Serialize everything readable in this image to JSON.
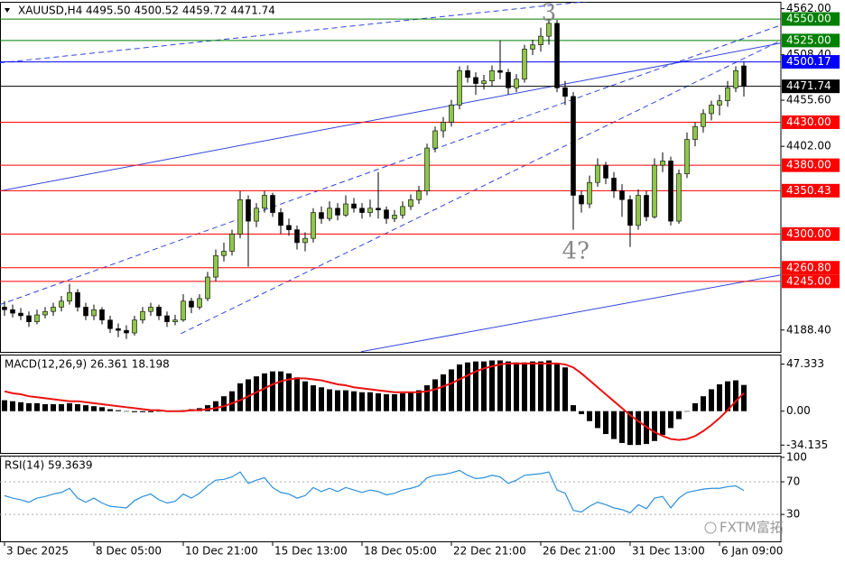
{
  "chart_data": [
    {
      "type": "candlestick",
      "title": "XAUUSD,H4",
      "ohlc_label": "4495.50 4500.52 4459.72 4471.74",
      "up_color": "#8fc64a",
      "down_color": "#000000",
      "ylim": [
        4163,
        4570
      ],
      "yticks": [
        {
          "value": 4562,
          "label": "4562.00"
        },
        {
          "value": 4508.4,
          "label": "4508.40"
        },
        {
          "value": 4455.6,
          "label": "4455.60"
        },
        {
          "value": 4402,
          "label": "4402.00"
        },
        {
          "value": 4188.4,
          "label": "4188.40"
        }
      ],
      "xticks": [
        {
          "value": 0,
          "label": "3 Dec 2025"
        },
        {
          "value": 11,
          "label": "8 Dec 05:00"
        },
        {
          "value": 22,
          "label": "10 Dec 21:00"
        },
        {
          "value": 33,
          "label": "15 Dec 13:00"
        },
        {
          "value": 44,
          "label": "18 Dec 05:00"
        },
        {
          "value": 55,
          "label": "22 Dec 21:00"
        },
        {
          "value": 66,
          "label": "26 Dec 21:00"
        },
        {
          "value": 77,
          "label": "31 Dec 13:00"
        },
        {
          "value": 88,
          "label": "6 Jan 09:00"
        }
      ],
      "levels": [
        {
          "value": 4550,
          "label": "4550.00",
          "color": "#008000"
        },
        {
          "value": 4525,
          "label": "4525.00",
          "color": "#008000"
        },
        {
          "value": 4500.17,
          "label": "4500.17",
          "color": "#0000ff"
        },
        {
          "value": 4471.74,
          "label": "4471.74",
          "color": "#000000"
        },
        {
          "value": 4430,
          "label": "4430.00",
          "color": "#ff0000"
        },
        {
          "value": 4380,
          "label": "4380.00",
          "color": "#ff0000"
        },
        {
          "value": 4350.43,
          "label": "4350.43",
          "color": "#ff0000"
        },
        {
          "value": 4300,
          "label": "4300.00",
          "color": "#ff0000"
        },
        {
          "value": 4260.8,
          "label": "4260.80",
          "color": "#ff0000"
        },
        {
          "value": 4245,
          "label": "4245.00",
          "color": "#ff0000"
        }
      ],
      "trendlines": [
        {
          "from": [
            -0.6,
            4499.0
          ],
          "to": [
            71.7,
            4570.4
          ],
          "dashed": true,
          "color": "#3344dd"
        },
        {
          "from": [
            -0.6,
            4217.8
          ],
          "to": [
            95.6,
            4543.1
          ],
          "dashed": true,
          "color": "#3344dd"
        },
        {
          "from": [
            21.7,
            4184.2
          ],
          "to": [
            95.6,
            4525.3
          ],
          "dashed": true,
          "color": "#3344dd"
        },
        {
          "from": [
            -0.6,
            4350.0
          ],
          "to": [
            95.6,
            4522.1
          ],
          "dashed": false,
          "color": "#3344dd"
        },
        {
          "from": [
            43.9,
            4163.3
          ],
          "to": [
            95.6,
            4252.5
          ],
          "dashed": false,
          "color": "#3344dd"
        }
      ],
      "annotations": [
        {
          "text": "3",
          "index": 67,
          "price": 4556
        },
        {
          "text": "4?",
          "index": 70.3,
          "price": 4279
        }
      ],
      "candles": [
        [
          4215,
          4222,
          4205,
          4212
        ],
        [
          4212,
          4218,
          4203,
          4208
        ],
        [
          4208,
          4214,
          4200,
          4205
        ],
        [
          4205,
          4210,
          4192,
          4198
        ],
        [
          4198,
          4212,
          4195,
          4206
        ],
        [
          4206,
          4215,
          4202,
          4210
        ],
        [
          4210,
          4220,
          4205,
          4215
        ],
        [
          4215,
          4228,
          4210,
          4222
        ],
        [
          4222,
          4242,
          4218,
          4232
        ],
        [
          4232,
          4236,
          4210,
          4215
        ],
        [
          4215,
          4220,
          4200,
          4205
        ],
        [
          4205,
          4218,
          4200,
          4212
        ],
        [
          4212,
          4215,
          4195,
          4200
        ],
        [
          4200,
          4205,
          4185,
          4190
        ],
        [
          4190,
          4196,
          4180,
          4188
        ],
        [
          4188,
          4194,
          4178,
          4185
        ],
        [
          4185,
          4205,
          4182,
          4200
        ],
        [
          4200,
          4215,
          4196,
          4210
        ],
        [
          4210,
          4220,
          4205,
          4215
        ],
        [
          4215,
          4218,
          4200,
          4205
        ],
        [
          4205,
          4210,
          4192,
          4198
        ],
        [
          4198,
          4206,
          4194,
          4200
        ],
        [
          4200,
          4230,
          4198,
          4222
        ],
        [
          4222,
          4226,
          4208,
          4215
        ],
        [
          4215,
          4230,
          4212,
          4225
        ],
        [
          4225,
          4256,
          4222,
          4250
        ],
        [
          4250,
          4282,
          4245,
          4275
        ],
        [
          4275,
          4290,
          4268,
          4280
        ],
        [
          4280,
          4305,
          4275,
          4300
        ],
        [
          4300,
          4350,
          4295,
          4340
        ],
        [
          4340,
          4345,
          4262,
          4315
        ],
        [
          4315,
          4336,
          4308,
          4330
        ],
        [
          4330,
          4350,
          4325,
          4345
        ],
        [
          4345,
          4348,
          4320,
          4325
        ],
        [
          4325,
          4330,
          4300,
          4310
        ],
        [
          4310,
          4318,
          4298,
          4305
        ],
        [
          4305,
          4310,
          4282,
          4290
        ],
        [
          4290,
          4302,
          4280,
          4295
        ],
        [
          4295,
          4330,
          4290,
          4325
        ],
        [
          4325,
          4332,
          4312,
          4318
        ],
        [
          4318,
          4338,
          4315,
          4330
        ],
        [
          4330,
          4336,
          4316,
          4322
        ],
        [
          4322,
          4345,
          4320,
          4335
        ],
        [
          4335,
          4342,
          4325,
          4330
        ],
        [
          4330,
          4336,
          4318,
          4325
        ],
        [
          4325,
          4340,
          4320,
          4330
        ],
        [
          4330,
          4372,
          4318,
          4328
        ],
        [
          4328,
          4332,
          4312,
          4318
        ],
        [
          4318,
          4328,
          4314,
          4322
        ],
        [
          4322,
          4338,
          4318,
          4332
        ],
        [
          4332,
          4346,
          4328,
          4340
        ],
        [
          4340,
          4356,
          4335,
          4350
        ],
        [
          4350,
          4405,
          4345,
          4400
        ],
        [
          4400,
          4425,
          4395,
          4420
        ],
        [
          4420,
          4436,
          4412,
          4430
        ],
        [
          4430,
          4456,
          4425,
          4450
        ],
        [
          4450,
          4495,
          4445,
          4490
        ],
        [
          4490,
          4496,
          4476,
          4482
        ],
        [
          4482,
          4488,
          4462,
          4475
        ],
        [
          4475,
          4485,
          4468,
          4478
        ],
        [
          4478,
          4496,
          4472,
          4490
        ],
        [
          4490,
          4525,
          4480,
          4488
        ],
        [
          4488,
          4492,
          4462,
          4470
        ],
        [
          4470,
          4486,
          4465,
          4480
        ],
        [
          4480,
          4520,
          4476,
          4515
        ],
        [
          4515,
          4526,
          4508,
          4520
        ],
        [
          4520,
          4540,
          4512,
          4530
        ],
        [
          4530,
          4550,
          4520,
          4545
        ],
        [
          4545,
          4549,
          4465,
          4470
        ],
        [
          4470,
          4478,
          4450,
          4460
        ],
        [
          4460,
          4465,
          4305,
          4345
        ],
        [
          4345,
          4350,
          4325,
          4335
        ],
        [
          4335,
          4368,
          4330,
          4360
        ],
        [
          4360,
          4388,
          4355,
          4380
        ],
        [
          4380,
          4384,
          4358,
          4365
        ],
        [
          4365,
          4372,
          4342,
          4350
        ],
        [
          4350,
          4358,
          4320,
          4340
        ],
        [
          4340,
          4345,
          4285,
          4310
        ],
        [
          4310,
          4352,
          4305,
          4345
        ],
        [
          4345,
          4350,
          4315,
          4320
        ],
        [
          4320,
          4388,
          4318,
          4380
        ],
        [
          4380,
          4395,
          4372,
          4385
        ],
        [
          4385,
          4390,
          4310,
          4315
        ],
        [
          4315,
          4375,
          4312,
          4370
        ],
        [
          4370,
          4418,
          4365,
          4410
        ],
        [
          4410,
          4430,
          4402,
          4425
        ],
        [
          4425,
          4445,
          4418,
          4440
        ],
        [
          4440,
          4455,
          4432,
          4450
        ],
        [
          4450,
          4462,
          4438,
          4455
        ],
        [
          4455,
          4478,
          4448,
          4470
        ],
        [
          4470,
          4495,
          4465,
          4490
        ],
        [
          4495.5,
          4500.52,
          4459.72,
          4471.74
        ]
      ]
    },
    {
      "type": "macd",
      "label": "MACD(12,26,9) 26.361 18.198",
      "bar_color": "#000000",
      "signal_color": "#ee1111",
      "ylim": [
        -42,
        56
      ],
      "yticks": [
        47.333,
        {
          "value": 0,
          "label": "0.00"
        },
        -34.135
      ],
      "histogram": [
        11,
        10,
        9,
        8,
        8,
        7,
        7,
        7,
        8,
        7,
        6,
        5,
        4,
        2,
        1,
        0,
        -1,
        -1,
        -1,
        0,
        0,
        0,
        1,
        2,
        3,
        6,
        10,
        15,
        20,
        28,
        32,
        35,
        38,
        40,
        40,
        38,
        34,
        30,
        26,
        24,
        22,
        21,
        21,
        20,
        19,
        19,
        18,
        17,
        17,
        18,
        19,
        21,
        26,
        32,
        37,
        42,
        47,
        49,
        50,
        50,
        51,
        51,
        50,
        49,
        49,
        50,
        50,
        51,
        48,
        44,
        6,
        -3,
        -10,
        -17,
        -23,
        -28,
        -32,
        -34,
        -34,
        -33,
        -30,
        -24,
        -17,
        -8,
        0,
        8,
        15,
        22,
        27,
        30,
        31,
        26.361
      ],
      "signal": [
        20,
        18,
        17,
        15,
        14,
        13,
        12,
        11,
        10,
        10,
        9,
        8,
        7,
        6,
        5,
        4,
        3,
        2,
        1,
        1,
        0,
        0,
        0,
        1,
        1,
        2,
        3,
        5,
        8,
        11,
        15,
        19,
        23,
        27,
        30,
        32,
        33,
        33,
        32,
        31,
        29,
        27,
        26,
        24,
        23,
        22,
        21,
        20,
        19,
        19,
        19,
        19,
        20,
        22,
        25,
        28,
        32,
        36,
        40,
        43,
        45,
        47,
        48,
        48,
        48,
        48,
        48,
        48,
        48,
        47,
        44,
        38,
        31,
        24,
        17,
        10,
        3,
        -4,
        -10,
        -16,
        -21,
        -25,
        -28,
        -29,
        -28,
        -25,
        -20,
        -14,
        -7,
        1,
        10,
        18.198
      ]
    },
    {
      "type": "line",
      "label": "RSI(14) 59.3639",
      "color": "#2b8fdc",
      "ylim": [
        -3,
        101
      ],
      "yticks": [
        100,
        70,
        30
      ],
      "values": [
        53,
        50,
        48,
        45,
        50,
        52,
        55,
        57,
        62,
        50,
        45,
        50,
        44,
        40,
        39,
        38,
        47,
        52,
        55,
        48,
        44,
        46,
        55,
        50,
        56,
        65,
        72,
        73,
        76,
        82,
        68,
        72,
        75,
        63,
        57,
        55,
        50,
        53,
        63,
        58,
        62,
        58,
        63,
        60,
        57,
        60,
        58,
        54,
        56,
        60,
        62,
        65,
        75,
        78,
        79,
        81,
        84,
        78,
        74,
        75,
        78,
        76,
        68,
        72,
        78,
        79,
        80,
        82,
        60,
        56,
        35,
        33,
        40,
        45,
        42,
        38,
        36,
        32,
        42,
        37,
        50,
        52,
        38,
        50,
        57,
        59,
        61,
        62,
        62,
        64,
        65,
        59.3639
      ],
      "watermark": "FXTM富拓"
    }
  ]
}
